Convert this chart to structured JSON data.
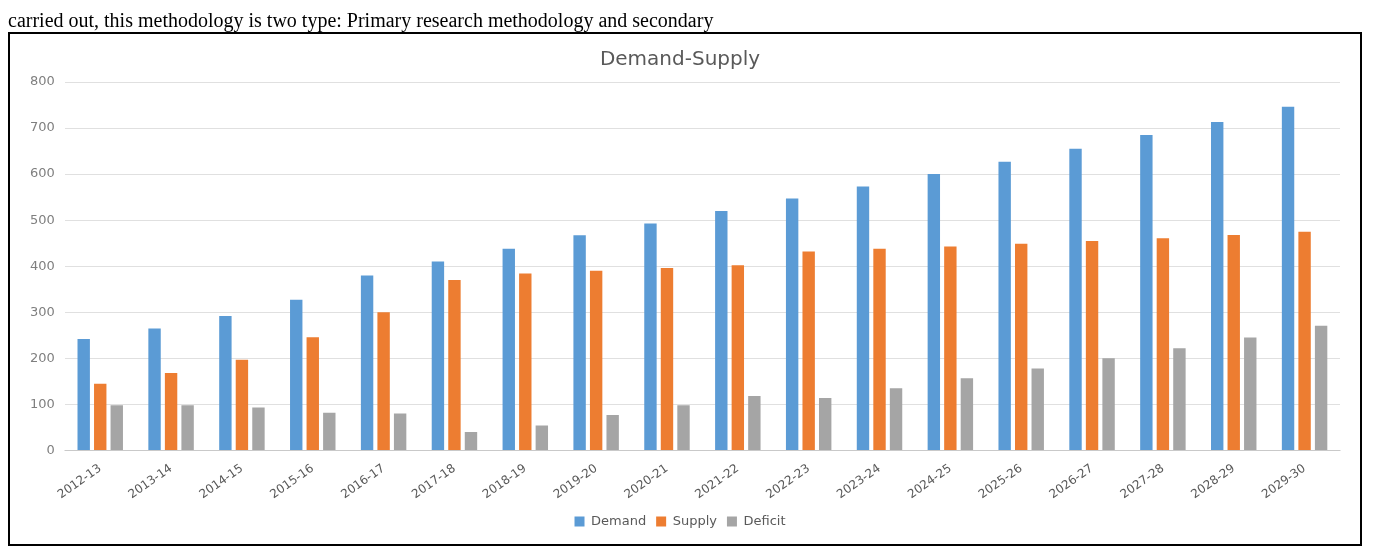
{
  "chart_data": {
    "type": "bar",
    "title": "Demand-Supply",
    "annotations": [
      "carried out, this methodology is two type: Primary research methodology and secondary"
    ],
    "categories": [
      "2012-13",
      "2013-14",
      "2014-15",
      "2015-16",
      "2016-17",
      "2017-18",
      "2018-19",
      "2019-20",
      "2020-21",
      "2021-22",
      "2022-23",
      "2023-24",
      "2024-25",
      "2025-26",
      "2026-27",
      "2027-28",
      "2028-29",
      "2029-30"
    ],
    "series": [
      {
        "name": "Demand",
        "color": "#5b9bd5",
        "values": [
          242,
          265,
          292,
          327,
          380,
          410,
          438,
          467,
          493,
          520,
          547,
          573,
          600,
          627,
          655,
          685,
          713,
          746
        ]
      },
      {
        "name": "Supply",
        "color": "#ed7d31",
        "values": [
          145,
          168,
          197,
          246,
          300,
          370,
          384,
          390,
          396,
          402,
          432,
          438,
          443,
          449,
          455,
          461,
          468,
          475
        ]
      },
      {
        "name": "Deficit",
        "color": "#a5a5a5",
        "values": [
          98,
          98,
          93,
          82,
          80,
          40,
          54,
          77,
          98,
          118,
          114,
          135,
          157,
          178,
          200,
          222,
          245,
          271
        ]
      }
    ],
    "ylim": [
      0,
      800
    ],
    "yticks": [
      0,
      100,
      200,
      300,
      400,
      500,
      600,
      700,
      800
    ],
    "grid": "y",
    "legend": "bottom"
  }
}
